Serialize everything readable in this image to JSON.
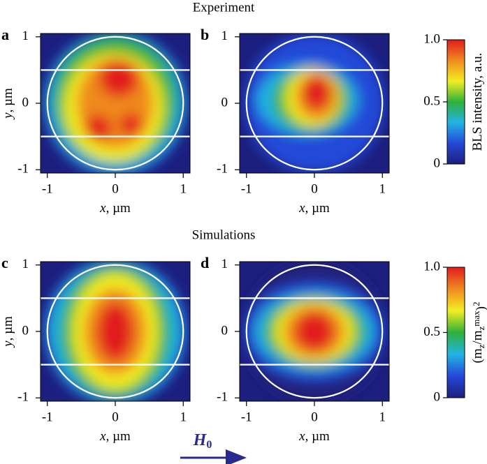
{
  "headings": {
    "experiment": "Experiment",
    "simulations": "Simulations"
  },
  "field": {
    "symbol": "H",
    "subscript": "0"
  },
  "chart_data": [
    {
      "type": "heatmap",
      "panel": "a",
      "xlim": [
        -1.1,
        1.1
      ],
      "ylim": [
        -1.05,
        1.05
      ],
      "xticks": [
        -1,
        0,
        1
      ],
      "yticks": [
        -1,
        0,
        1
      ],
      "xlabel": [
        {
          "t": "x",
          "italic": true
        },
        {
          "t": ", µm"
        }
      ],
      "ylabel": [
        {
          "t": "y",
          "italic": true
        },
        {
          "t": ", µm"
        }
      ]
    },
    {
      "type": "heatmap",
      "panel": "b",
      "xlim": [
        -1.1,
        1.1
      ],
      "ylim": [
        -1.05,
        1.05
      ],
      "xticks": [
        -1,
        0,
        1
      ],
      "yticks": [
        -1,
        0,
        1
      ],
      "xlabel": [
        {
          "t": "x",
          "italic": true
        },
        {
          "t": ", µm"
        }
      ]
    },
    {
      "type": "heatmap",
      "panel": "c",
      "xlim": [
        -1.1,
        1.1
      ],
      "ylim": [
        -1.05,
        1.05
      ],
      "xticks": [
        -1,
        0,
        1
      ],
      "yticks": [
        -1,
        0,
        1
      ],
      "xlabel": [
        {
          "t": "x",
          "italic": true
        },
        {
          "t": ", µm"
        }
      ],
      "ylabel": [
        {
          "t": "y",
          "italic": true
        },
        {
          "t": ", µm"
        }
      ]
    },
    {
      "type": "heatmap",
      "panel": "d",
      "xlim": [
        -1.1,
        1.1
      ],
      "ylim": [
        -1.05,
        1.05
      ],
      "xticks": [
        -1,
        0,
        1
      ],
      "yticks": [
        -1,
        0,
        1
      ],
      "xlabel": [
        {
          "t": "x",
          "italic": true
        },
        {
          "t": ", µm"
        }
      ]
    },
    {
      "type": "colorbar",
      "ylim": [
        0,
        1
      ],
      "yticks": [
        0,
        0.5,
        {
          "value": 1,
          "label": "1.0"
        }
      ],
      "colors": [
        "#1c1f7e",
        "#2448d8",
        "#22b4e4",
        "#2fb03a",
        "#f2ee22",
        "#f08a1e",
        "#e11d1d"
      ],
      "label": [
        {
          "t": "BLS intensity, a.u."
        }
      ]
    },
    {
      "type": "colorbar",
      "ylim": [
        0,
        1
      ],
      "yticks": [
        0,
        0.5,
        {
          "value": 1,
          "label": "1.0"
        }
      ],
      "colors": [
        "#1c1f7e",
        "#2448d8",
        "#22b4e4",
        "#2fb03a",
        "#f2ee22",
        "#f08a1e",
        "#e11d1d"
      ],
      "label": [
        {
          "t": "(m"
        },
        {
          "t": "z",
          "sub": true
        },
        {
          "t": "/m"
        },
        {
          "t": "z",
          "sub": true
        },
        {
          "t": "max",
          "sup": true
        },
        {
          "t": ")"
        },
        {
          "t": "2",
          "sup": true
        }
      ]
    }
  ]
}
